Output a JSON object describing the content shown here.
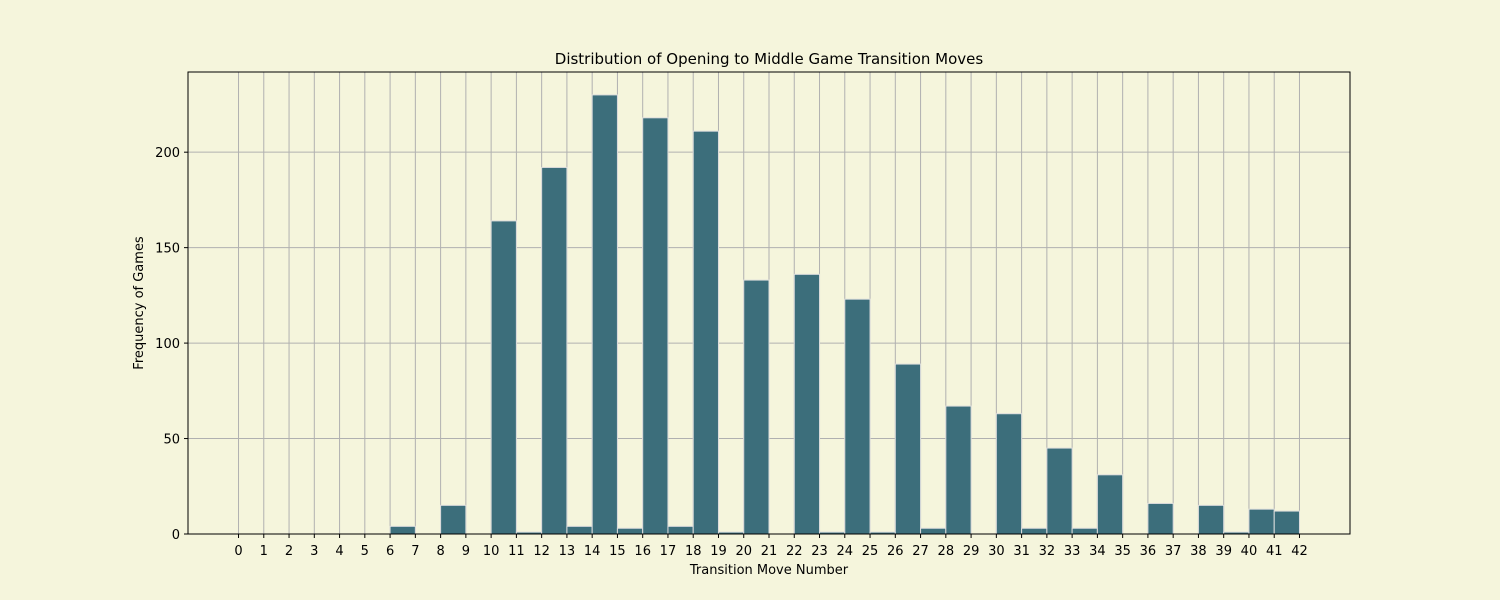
{
  "colors": {
    "background": "#f5f5dc",
    "bar_fill": "#3c6e7b",
    "bar_edge": "#dddddd",
    "grid": "#b0b0b0"
  },
  "chart_data": {
    "type": "bar",
    "title": "Distribution of Opening to Middle Game Transition Moves",
    "xlabel": "Transition Move Number",
    "ylabel": "Frequency of Games",
    "xlim": [
      -2,
      44
    ],
    "ylim": [
      0,
      242
    ],
    "grid": true,
    "xticks": [
      0,
      1,
      2,
      3,
      4,
      5,
      6,
      7,
      8,
      9,
      10,
      11,
      12,
      13,
      14,
      15,
      16,
      17,
      18,
      19,
      20,
      21,
      22,
      23,
      24,
      25,
      26,
      27,
      28,
      29,
      30,
      31,
      32,
      33,
      34,
      35,
      36,
      37,
      38,
      39,
      40,
      41,
      42
    ],
    "yticks": [
      0,
      50,
      100,
      150,
      200
    ],
    "bins": [
      {
        "start": 6,
        "end": 7,
        "value": 4
      },
      {
        "start": 8,
        "end": 9,
        "value": 15
      },
      {
        "start": 10,
        "end": 11,
        "value": 164
      },
      {
        "start": 11,
        "end": 12,
        "value": 1
      },
      {
        "start": 12,
        "end": 13,
        "value": 192
      },
      {
        "start": 13,
        "end": 14,
        "value": 4
      },
      {
        "start": 14,
        "end": 15,
        "value": 230
      },
      {
        "start": 15,
        "end": 16,
        "value": 3
      },
      {
        "start": 16,
        "end": 17,
        "value": 218
      },
      {
        "start": 17,
        "end": 18,
        "value": 4
      },
      {
        "start": 18,
        "end": 19,
        "value": 211
      },
      {
        "start": 19,
        "end": 20,
        "value": 1
      },
      {
        "start": 20,
        "end": 21,
        "value": 133
      },
      {
        "start": 22,
        "end": 23,
        "value": 136
      },
      {
        "start": 23,
        "end": 24,
        "value": 1
      },
      {
        "start": 24,
        "end": 25,
        "value": 123
      },
      {
        "start": 25,
        "end": 26,
        "value": 1
      },
      {
        "start": 26,
        "end": 27,
        "value": 89
      },
      {
        "start": 27,
        "end": 28,
        "value": 3
      },
      {
        "start": 28,
        "end": 29,
        "value": 67
      },
      {
        "start": 30,
        "end": 31,
        "value": 63
      },
      {
        "start": 31,
        "end": 32,
        "value": 3
      },
      {
        "start": 32,
        "end": 33,
        "value": 45
      },
      {
        "start": 33,
        "end": 34,
        "value": 3
      },
      {
        "start": 34,
        "end": 35,
        "value": 31
      },
      {
        "start": 36,
        "end": 37,
        "value": 16
      },
      {
        "start": 38,
        "end": 39,
        "value": 15
      },
      {
        "start": 39,
        "end": 40,
        "value": 1
      },
      {
        "start": 40,
        "end": 41,
        "value": 13
      },
      {
        "start": 41,
        "end": 42,
        "value": 12
      }
    ]
  }
}
